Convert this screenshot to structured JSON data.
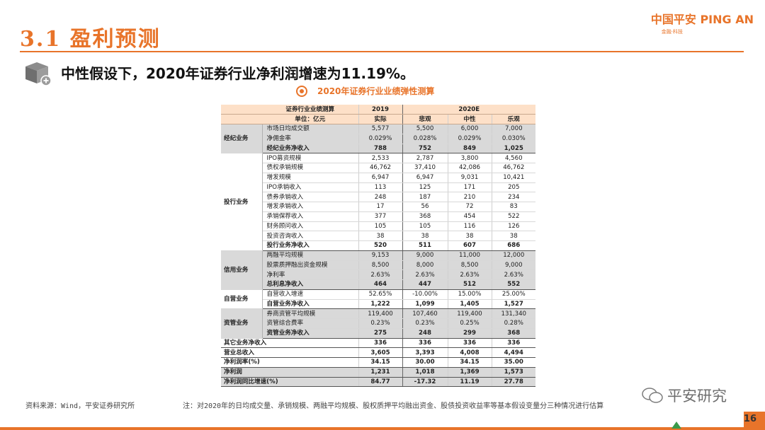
{
  "header": {
    "section_title": "3.1 盈利预测",
    "brand_main": "中国平安 PING AN",
    "brand_sub": "金融·科技"
  },
  "headline": "中性假设下，2020年证券行业净利润增速为11.19%。",
  "table_caption": "2020年证券行业业绩弹性测算",
  "table": {
    "header_row1": [
      "证券行业业绩测算",
      "2019",
      "2020E"
    ],
    "header_row2": [
      "单位：亿元",
      "实际",
      "悲观",
      "中性",
      "乐观"
    ],
    "sections": [
      {
        "segment": "经纪业务",
        "gray": true,
        "rows": [
          {
            "item": "市场日均成交额",
            "values": [
              "5,577",
              "5,500",
              "6,000",
              "7,000"
            ]
          },
          {
            "item": "净佣金率",
            "values": [
              "0.029%",
              "0.028%",
              "0.029%",
              "0.030%"
            ]
          },
          {
            "item": "经纪业务净收入",
            "values": [
              "788",
              "752",
              "849",
              "1,025"
            ],
            "subtotal": true
          }
        ]
      },
      {
        "segment": "投行业务",
        "gray": false,
        "rows": [
          {
            "item": "IPO募资规模",
            "values": [
              "2,533",
              "2,787",
              "3,800",
              "4,560"
            ]
          },
          {
            "item": "债权承销规模",
            "values": [
              "46,762",
              "37,410",
              "42,086",
              "46,762"
            ]
          },
          {
            "item": "增发规模",
            "values": [
              "6,947",
              "6,947",
              "9,031",
              "10,421"
            ]
          },
          {
            "item": "IPO承销收入",
            "values": [
              "113",
              "125",
              "171",
              "205"
            ]
          },
          {
            "item": "债券承销收入",
            "values": [
              "248",
              "187",
              "210",
              "234"
            ]
          },
          {
            "item": "增发承销收入",
            "values": [
              "17",
              "56",
              "72",
              "83"
            ]
          },
          {
            "item": "承销保荐收入",
            "values": [
              "377",
              "368",
              "454",
              "522"
            ]
          },
          {
            "item": "财务顾问收入",
            "values": [
              "105",
              "105",
              "116",
              "126"
            ]
          },
          {
            "item": "投资咨询收入",
            "values": [
              "38",
              "38",
              "38",
              "38"
            ]
          },
          {
            "item": "投行业务净收入",
            "values": [
              "520",
              "511",
              "607",
              "686"
            ],
            "subtotal": true
          }
        ]
      },
      {
        "segment": "信用业务",
        "gray": true,
        "rows": [
          {
            "item": "两融平均规模",
            "values": [
              "9,153",
              "9,000",
              "11,000",
              "12,000"
            ]
          },
          {
            "item": "股票质押融出资金规模",
            "values": [
              "8,500",
              "8,000",
              "8,500",
              "9,000"
            ]
          },
          {
            "item": "净利率",
            "values": [
              "2.63%",
              "2.63%",
              "2.63%",
              "2.63%"
            ]
          },
          {
            "item": "总利息净收入",
            "values": [
              "464",
              "447",
              "512",
              "552"
            ],
            "subtotal": true
          }
        ]
      },
      {
        "segment": "自营业务",
        "gray": false,
        "rows": [
          {
            "item": "自营收入增速",
            "values": [
              "52.65%",
              "-10.00%",
              "15.00%",
              "25.00%"
            ]
          },
          {
            "item": "自营业务净收入",
            "values": [
              "1,222",
              "1,099",
              "1,405",
              "1,527"
            ],
            "subtotal": true
          }
        ]
      },
      {
        "segment": "资管业务",
        "gray": true,
        "rows": [
          {
            "item": "券商资管平均规模",
            "values": [
              "119,400",
              "107,460",
              "119,400",
              "131,340"
            ]
          },
          {
            "item": "资管综合费率",
            "values": [
              "0.23%",
              "0.23%",
              "0.25%",
              "0.28%"
            ]
          },
          {
            "item": "资管业务净收入",
            "values": [
              "275",
              "248",
              "299",
              "368"
            ],
            "subtotal": true
          }
        ]
      }
    ],
    "totals": [
      {
        "label": "其它业务净收入",
        "values": [
          "336",
          "336",
          "336",
          "336"
        ],
        "gray": false
      },
      {
        "label": "营业总收入",
        "values": [
          "3,605",
          "3,393",
          "4,008",
          "4,494"
        ],
        "gray": false
      },
      {
        "label": "净利润率(%)",
        "values": [
          "34.15",
          "30.00",
          "34.15",
          "35.00"
        ],
        "gray": false
      },
      {
        "label": "净利润",
        "values": [
          "1,231",
          "1,018",
          "1,369",
          "1,573"
        ],
        "gray": true
      },
      {
        "label": "净利润同比增速(%)",
        "values": [
          "84.77",
          "-17.32",
          "11.19",
          "27.78"
        ],
        "gray": true
      }
    ]
  },
  "source": "资料来源：Wind，平安证券研究所",
  "note": "注：对2020年的日均成交量、承销规模、两融平均规模、股权质押平均融出资金、股债投资收益率等基本假设变量分三种情况进行估算",
  "watermark": "平安研究",
  "page_number": "16",
  "colors": {
    "accent": "#e8742a",
    "header_fill": "#fde0c8",
    "gray_fill": "#d9d9d9"
  }
}
